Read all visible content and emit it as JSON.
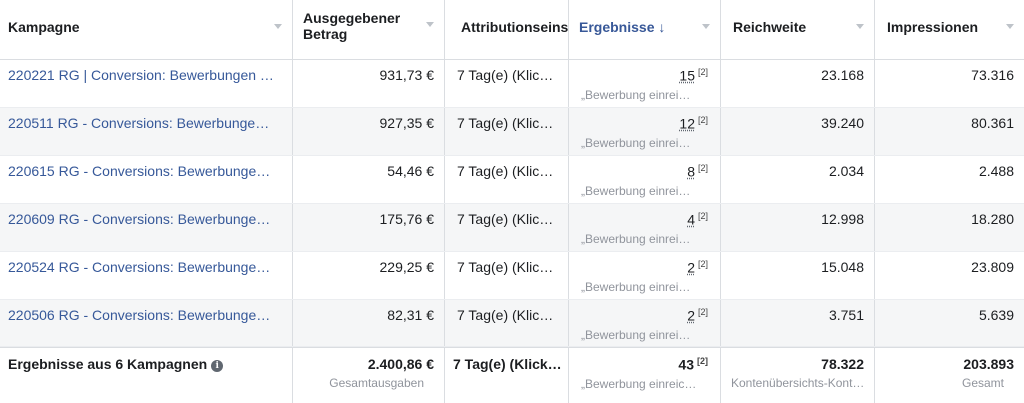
{
  "header": {
    "kampagne": "Kampagne",
    "betrag": "Ausgegebener Betrag",
    "attribution": "Attributionseinstellung",
    "ergebnisse": "Ergebnisse ↓",
    "reichweite": "Reichweite",
    "impressionen": "Impressionen"
  },
  "rows": [
    {
      "name": "220221 RG | Conversion: Bewerbungen …",
      "betrag": "931,73 €",
      "attr": "7 Tag(e) (Klic…",
      "ergebnis": "15",
      "fn": "[2]",
      "sub": "„Bewerbung einrei…",
      "reichweite": "23.168",
      "impressionen": "73.316"
    },
    {
      "name": "220511 RG - Conversions: Bewerbunge…",
      "betrag": "927,35 €",
      "attr": "7 Tag(e) (Klic…",
      "ergebnis": "12",
      "fn": "[2]",
      "sub": "„Bewerbung einrei…",
      "reichweite": "39.240",
      "impressionen": "80.361"
    },
    {
      "name": "220615 RG - Conversions: Bewerbunge…",
      "betrag": "54,46 €",
      "attr": "7 Tag(e) (Klic…",
      "ergebnis": "8",
      "fn": "[2]",
      "sub": "„Bewerbung einrei…",
      "reichweite": "2.034",
      "impressionen": "2.488"
    },
    {
      "name": "220609 RG - Conversions: Bewerbunge…",
      "betrag": "175,76 €",
      "attr": "7 Tag(e) (Klic…",
      "ergebnis": "4",
      "fn": "[2]",
      "sub": "„Bewerbung einrei…",
      "reichweite": "12.998",
      "impressionen": "18.280"
    },
    {
      "name": "220524 RG - Conversions: Bewerbunge…",
      "betrag": "229,25 €",
      "attr": "7 Tag(e) (Klic…",
      "ergebnis": "2",
      "fn": "[2]",
      "sub": "„Bewerbung einrei…",
      "reichweite": "15.048",
      "impressionen": "23.809"
    },
    {
      "name": "220506 RG - Conversions: Bewerbunge…",
      "betrag": "82,31 €",
      "attr": "7 Tag(e) (Klic…",
      "ergebnis": "2",
      "fn": "[2]",
      "sub": "„Bewerbung einrei…",
      "reichweite": "3.751",
      "impressionen": "5.639"
    }
  ],
  "footer": {
    "label": "Ergebnisse aus 6 Kampagnen",
    "info_icon": "info-icon",
    "betrag": "2.400,86 €",
    "betrag_sub": "Gesamtausgaben",
    "attr": "7 Tag(e) (Klick…",
    "ergebnis": "43",
    "fn": "[2]",
    "ergebnis_sub": "„Bewerbung einreic…",
    "reichweite": "78.322",
    "reichweite_sub": "Kontenübersichts-Kont…",
    "impressionen": "203.893",
    "impressionen_sub": "Gesamt"
  }
}
